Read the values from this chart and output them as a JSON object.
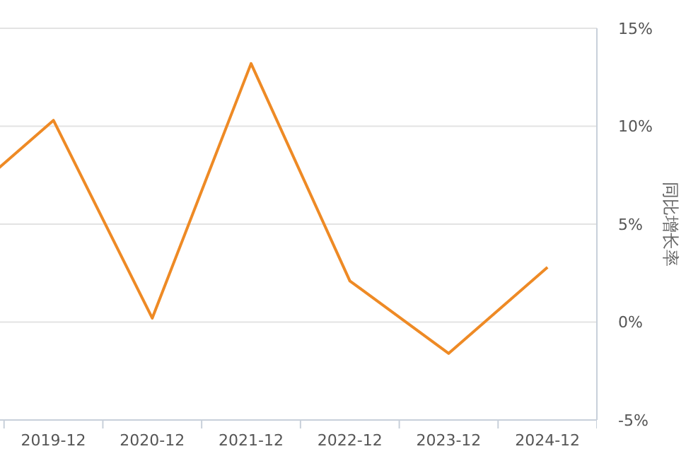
{
  "chart_data": {
    "type": "line",
    "ylabel": "同比增长率",
    "categories": [
      null,
      "2019-12",
      "2020-12",
      "2021-12",
      "2022-12",
      "2023-12",
      "2024-12"
    ],
    "series": [
      {
        "color": "#ee8a25",
        "values": [
          5.9,
          10.3,
          0.2,
          13.2,
          2.1,
          -1.6,
          2.8
        ]
      }
    ],
    "ylim": [
      -5,
      15
    ],
    "yticks": [
      {
        "value": -5,
        "label": "-5%"
      },
      {
        "value": 0,
        "label": "0%"
      },
      {
        "value": 5,
        "label": "5%"
      },
      {
        "value": 10,
        "label": "10%"
      },
      {
        "value": 15,
        "label": "15%"
      }
    ],
    "grid": "y",
    "marker": "none",
    "line_style": "solid"
  }
}
